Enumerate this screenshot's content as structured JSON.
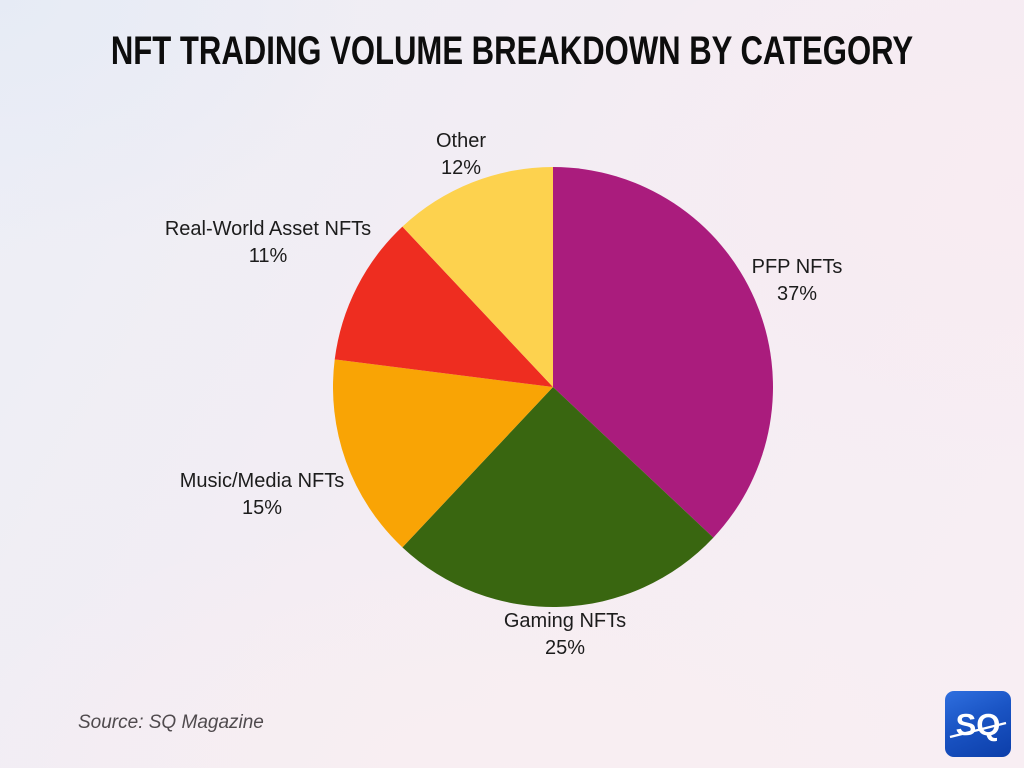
{
  "header": {
    "title": "NFT TRADING VOLUME BREAKDOWN BY CATEGORY"
  },
  "chart_data": {
    "type": "pie",
    "title": "NFT TRADING VOLUME BREAKDOWN BY CATEGORY",
    "direction": "clockwise",
    "start_angle_deg": 0,
    "legend": "none",
    "slices": [
      {
        "label": "PFP NFTs",
        "value": 37,
        "pct_label": "37%",
        "color": "#AA1C7D"
      },
      {
        "label": "Gaming NFTs",
        "value": 25,
        "pct_label": "25%",
        "color": "#396610"
      },
      {
        "label": "Music/Media NFTs",
        "value": 15,
        "pct_label": "15%",
        "color": "#F9A405"
      },
      {
        "label": "Real-World Asset NFTs",
        "value": 11,
        "pct_label": "11%",
        "color": "#EE2D20"
      },
      {
        "label": "Other",
        "value": 12,
        "pct_label": "12%",
        "color": "#FDD24E"
      }
    ],
    "source": "Source: SQ Magazine"
  },
  "footer": {
    "source": "Source: SQ Magazine"
  },
  "logo": {
    "text": "SQ",
    "background_color": "#1a54c4",
    "text_color": "#ffffff"
  }
}
